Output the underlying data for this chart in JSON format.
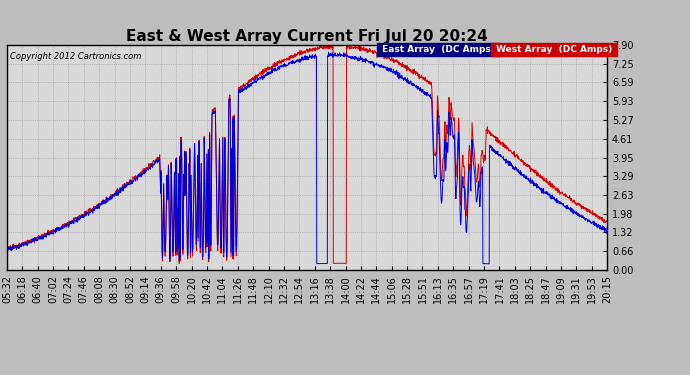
{
  "title": "East & West Array Current Fri Jul 20 20:24",
  "copyright": "Copyright 2012 Cartronics.com",
  "yticks": [
    0.0,
    0.66,
    1.32,
    1.98,
    2.63,
    3.29,
    3.95,
    4.61,
    5.27,
    5.93,
    6.59,
    7.25,
    7.9
  ],
  "ymax": 7.9,
  "ymin": 0.0,
  "east_color": "#0000dd",
  "west_color": "#dd0000",
  "bg_color": "#bebebe",
  "plot_bg_color": "#d8d8d8",
  "title_fontsize": 11,
  "tick_fontsize": 7,
  "xtick_labels": [
    "05:32",
    "06:18",
    "06:40",
    "07:02",
    "07:24",
    "07:46",
    "08:08",
    "08:30",
    "08:52",
    "09:14",
    "09:36",
    "09:58",
    "10:20",
    "10:42",
    "11:04",
    "11:26",
    "11:48",
    "12:10",
    "12:32",
    "12:54",
    "13:16",
    "13:38",
    "14:00",
    "14:22",
    "14:44",
    "15:06",
    "15:28",
    "15:51",
    "16:13",
    "16:35",
    "16:57",
    "17:19",
    "17:41",
    "18:03",
    "18:25",
    "18:47",
    "19:09",
    "19:31",
    "19:53",
    "20:15"
  ]
}
